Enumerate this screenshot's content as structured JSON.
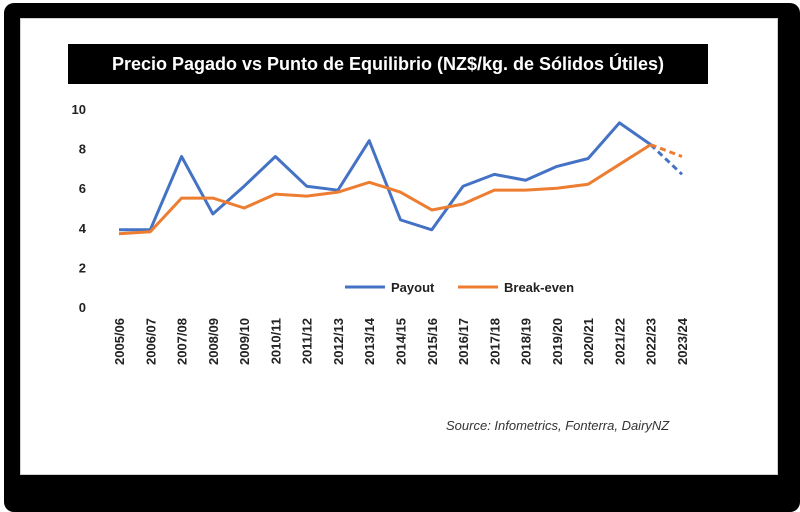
{
  "chart_data": {
    "type": "line",
    "title": "Precio Pagado vs Punto de Equilibrio (NZ$/kg. de Sólidos Útiles)",
    "xlabel": "",
    "ylabel": "",
    "ylim": [
      0,
      10
    ],
    "yticks": [
      "0",
      "2",
      "4",
      "6",
      "8",
      "10"
    ],
    "grid": false,
    "legend_position": "bottom-right",
    "categories": [
      "2005/06",
      "2006/07",
      "2007/08",
      "2008/09",
      "2009/10",
      "2010/11",
      "2011/12",
      "2012/13",
      "2013/14",
      "2014/15",
      "2015/16",
      "2016/17",
      "2017/18",
      "2018/19",
      "2019/20",
      "2020/21",
      "2021/22",
      "2022/23",
      "2023/24"
    ],
    "series": [
      {
        "name": "Payout",
        "color": "#4472c4",
        "values": [
          3.9,
          3.9,
          7.6,
          4.7,
          6.1,
          7.6,
          6.1,
          5.9,
          8.4,
          4.4,
          3.9,
          6.1,
          6.7,
          6.4,
          7.1,
          7.5,
          9.3,
          8.2,
          6.7
        ],
        "projected_from_index": 17
      },
      {
        "name": "Break-even",
        "color": "#ed7d31",
        "values": [
          3.7,
          3.8,
          5.5,
          5.5,
          5.0,
          5.7,
          5.6,
          5.8,
          6.3,
          5.8,
          4.9,
          5.2,
          5.9,
          5.9,
          6.0,
          6.2,
          7.2,
          8.2,
          7.6
        ],
        "projected_from_index": 17
      }
    ],
    "source": "Source: Infometrics, Fonterra, DairyNZ"
  }
}
